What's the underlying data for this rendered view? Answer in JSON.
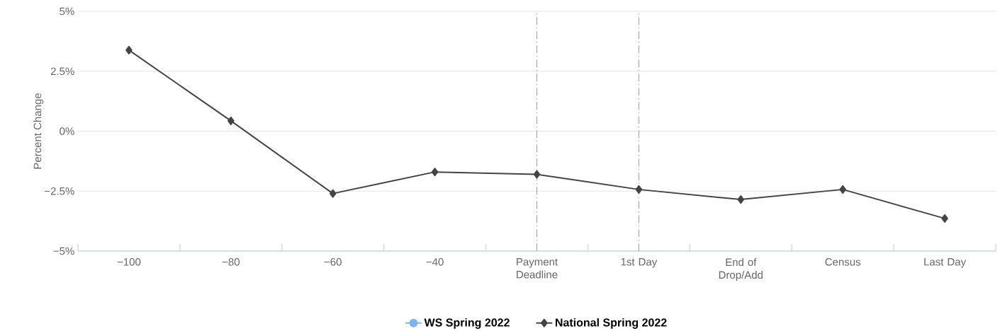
{
  "chart_data": {
    "type": "line",
    "ylabel": "Percent Change",
    "categories": [
      "−100",
      "−80",
      "−60",
      "−40",
      "Payment Deadline",
      "1st Day",
      "End of Drop/Add",
      "Census",
      "Last Day"
    ],
    "series": [
      {
        "name": "WS Spring 2022",
        "color": "#7cb5ec",
        "marker": "circle",
        "values": [
          null,
          null,
          null,
          null,
          null,
          null,
          null,
          null,
          null
        ]
      },
      {
        "name": "National Spring 2022",
        "color": "#434348",
        "marker": "diamond",
        "values": [
          3.38,
          0.43,
          -2.6,
          -1.7,
          -1.8,
          -2.43,
          -2.85,
          -2.43,
          -3.64
        ]
      }
    ],
    "ylim": [
      -5,
      5
    ],
    "yticks": [
      {
        "value": -5,
        "label": "−5%"
      },
      {
        "value": -2.5,
        "label": "−2.5%"
      },
      {
        "value": 0,
        "label": "0%"
      },
      {
        "value": 2.5,
        "label": "2.5%"
      },
      {
        "value": 5,
        "label": "5%"
      }
    ],
    "ref_lines": [
      {
        "axis": "x",
        "value": "Payment Deadline",
        "color": "#a0a0a0",
        "line_style": "dashdot"
      },
      {
        "axis": "x",
        "value": "1st Day",
        "color": "#a0a0a0",
        "line_style": "dashdot"
      }
    ],
    "grid": "y",
    "legend": "bottom",
    "line_style": "solid"
  }
}
